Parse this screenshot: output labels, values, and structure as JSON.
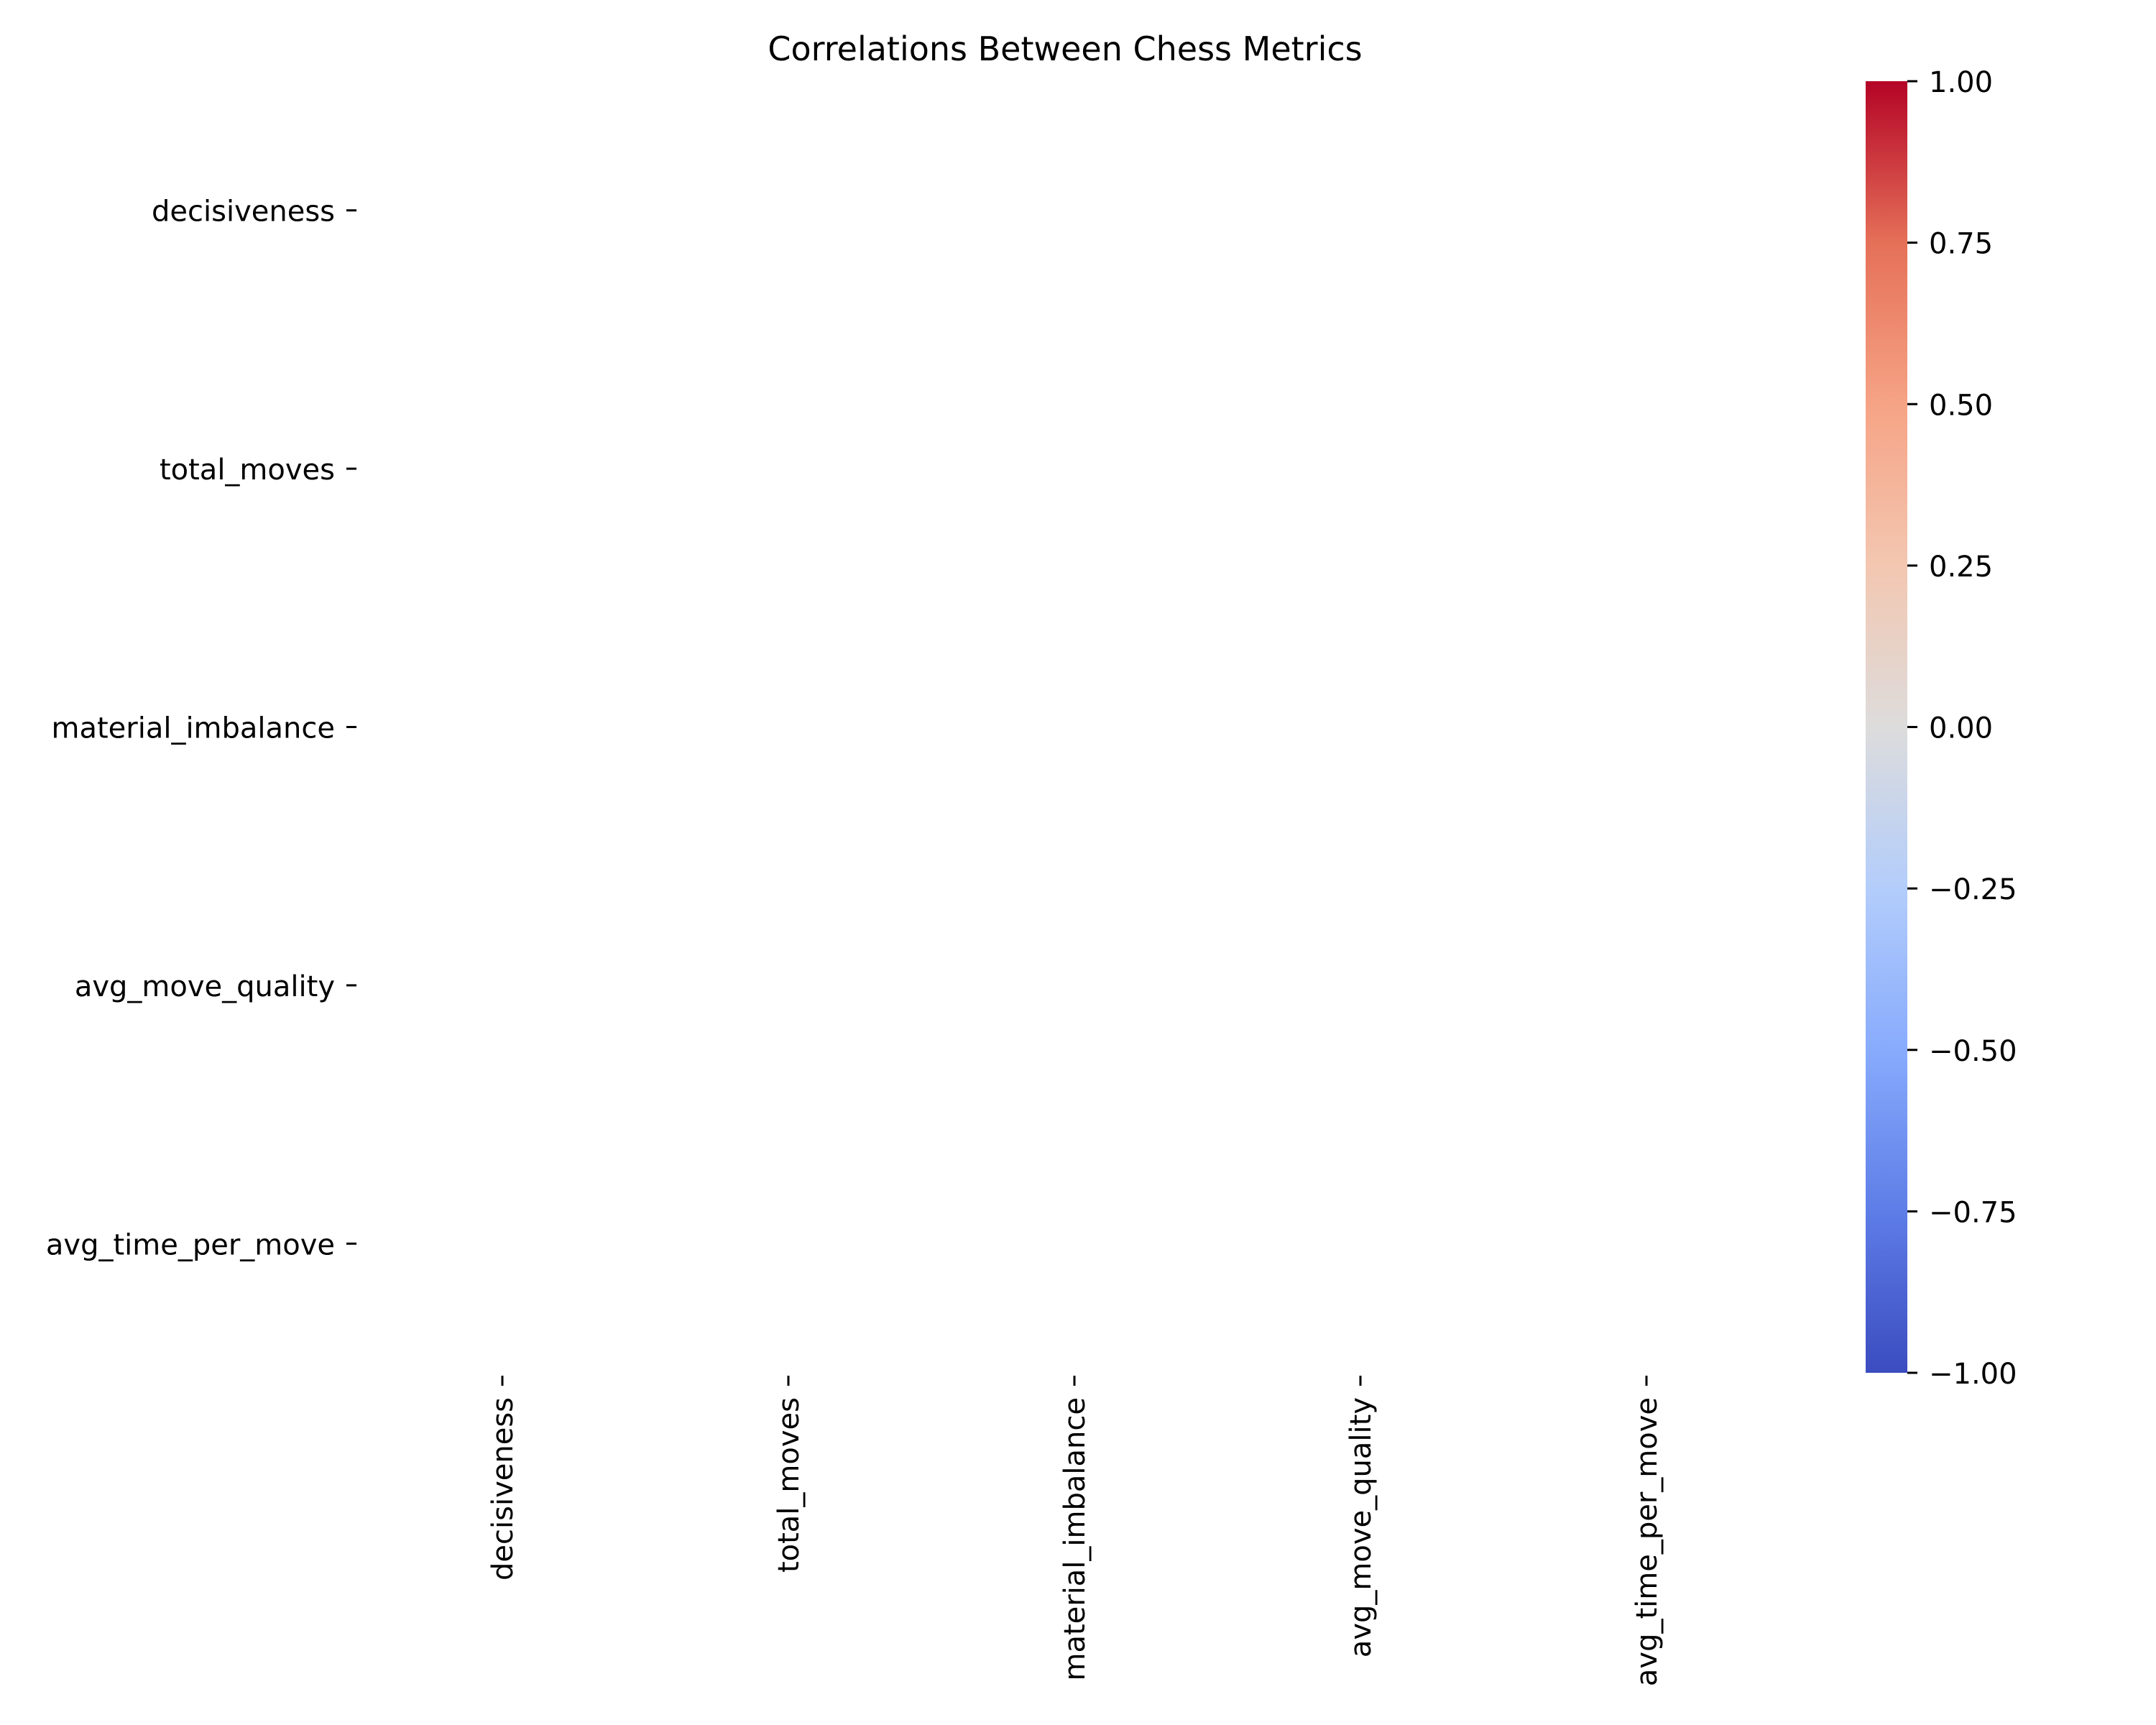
{
  "chart_data": {
    "type": "heatmap",
    "title": "Correlations Between Chess Metrics",
    "xlabel": "",
    "ylabel": "",
    "x_categories": [
      "decisiveness",
      "total_moves",
      "material_imbalance",
      "avg_move_quality",
      "avg_time_per_move"
    ],
    "y_categories": [
      "decisiveness",
      "total_moves",
      "material_imbalance",
      "avg_move_quality",
      "avg_time_per_move"
    ],
    "values": [
      [
        null,
        null,
        null,
        null,
        null
      ],
      [
        null,
        null,
        null,
        null,
        null
      ],
      [
        null,
        null,
        null,
        null,
        null
      ],
      [
        null,
        null,
        null,
        null,
        null
      ],
      [
        null,
        null,
        null,
        null,
        null
      ]
    ],
    "colorbar": {
      "colormap": "coolwarm",
      "range": [
        -1.0,
        1.0
      ],
      "ticks": [
        1.0,
        0.75,
        0.5,
        0.25,
        0.0,
        -0.25,
        -0.5,
        -0.75,
        -1.0
      ],
      "tick_labels": [
        "1.00",
        "0.75",
        "0.50",
        "0.25",
        "0.00",
        "−0.25",
        "−0.50",
        "−0.75",
        "−1.00"
      ],
      "colors": [
        "#3b4cc0",
        "#5e7de7",
        "#88abfd",
        "#b3cdfb",
        "#dddcdc",
        "#f3c7b1",
        "#f6a385",
        "#e57058",
        "#b40426"
      ]
    },
    "grid": false
  }
}
